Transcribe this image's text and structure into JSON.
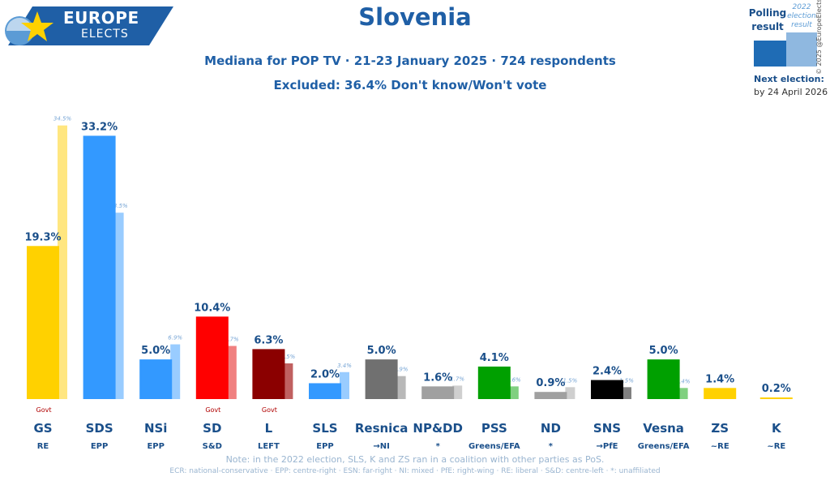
{
  "logo": {
    "line1": "EUROPE",
    "line2": "ELECTS"
  },
  "title": "Slovenia",
  "subtitle": "Mediana for POP TV · 21-23 January 2025 · 724 respondents",
  "excluded": "Excluded: 36.4% Don't know/Won't vote",
  "legend": {
    "polling": "Polling result",
    "election": "2022 election result",
    "next_election_label": "Next election:",
    "next_election_date": "by 24 April 2026",
    "copyright": "© 2025 @EuropeElects"
  },
  "note": "Note: in the 2022 election, SLS, K and ZS ran in a coalition with other parties as PoS.",
  "glossary": "ECR: national-conservative · EPP: centre-right · ESN: far-right · NI: mixed · PfE: right-wing · RE: liberal · S&D: centre-left · *: unaffiliated",
  "chart_data": {
    "type": "bar",
    "categories": [
      "GS",
      "SDS",
      "NSi",
      "SD",
      "L",
      "SLS",
      "Resnica",
      "NP&DD",
      "PSS",
      "ND",
      "SNS",
      "Vesna",
      "ZS",
      "K"
    ],
    "groups": [
      "RE",
      "EPP",
      "EPP",
      "S&D",
      "LEFT",
      "EPP",
      "→NI",
      "*",
      "Greens/EFA",
      "*",
      "→PfE",
      "Greens/EFA",
      "~RE",
      "~RE"
    ],
    "govt": [
      true,
      false,
      false,
      true,
      true,
      false,
      false,
      false,
      false,
      false,
      false,
      false,
      false,
      false
    ],
    "govt_label": "Govt",
    "series": [
      {
        "name": "Polling result",
        "values": [
          19.3,
          33.2,
          5.0,
          10.4,
          6.3,
          2.0,
          5.0,
          1.6,
          4.1,
          0.9,
          2.4,
          5.0,
          1.4,
          0.2
        ],
        "labels": [
          "19.3%",
          "33.2%",
          "5.0%",
          "10.4%",
          "6.3%",
          "2.0%",
          "5.0%",
          "1.6%",
          "4.1%",
          "0.9%",
          "2.4%",
          "5.0%",
          "1.4%",
          "0.2%"
        ]
      },
      {
        "name": "2022 election result",
        "values": [
          34.5,
          23.5,
          6.9,
          6.7,
          4.5,
          3.4,
          2.9,
          1.7,
          1.6,
          1.5,
          1.5,
          1.4,
          null,
          null
        ],
        "labels": [
          "34.5%",
          "23.5%",
          "6.9%",
          "6.7%",
          "4.5%",
          "3.4%",
          "2.9%",
          "1.7%",
          "1.6%",
          "1.5%",
          "1.5%",
          "1.4%",
          "",
          ""
        ]
      }
    ],
    "colors": [
      "#ffd100",
      "#3399ff",
      "#3399ff",
      "#ff0000",
      "#8b0000",
      "#3399ff",
      "#707070",
      "#a0a0a0",
      "#00a000",
      "#a0a0a0",
      "#000000",
      "#00a000",
      "#ffd100",
      "#ffd100"
    ],
    "light_colors": [
      "#ffe680",
      "#99ccff",
      "#99ccff",
      "#f08080",
      "#c06060",
      "#99ccff",
      "#b8b8b8",
      "#cfcfcf",
      "#80d080",
      "#cfcfcf",
      "#808080",
      "#80d080",
      "#ffe680",
      "#ffe680"
    ],
    "ylim": [
      0,
      36
    ],
    "grid": false,
    "legend": "top-right"
  }
}
